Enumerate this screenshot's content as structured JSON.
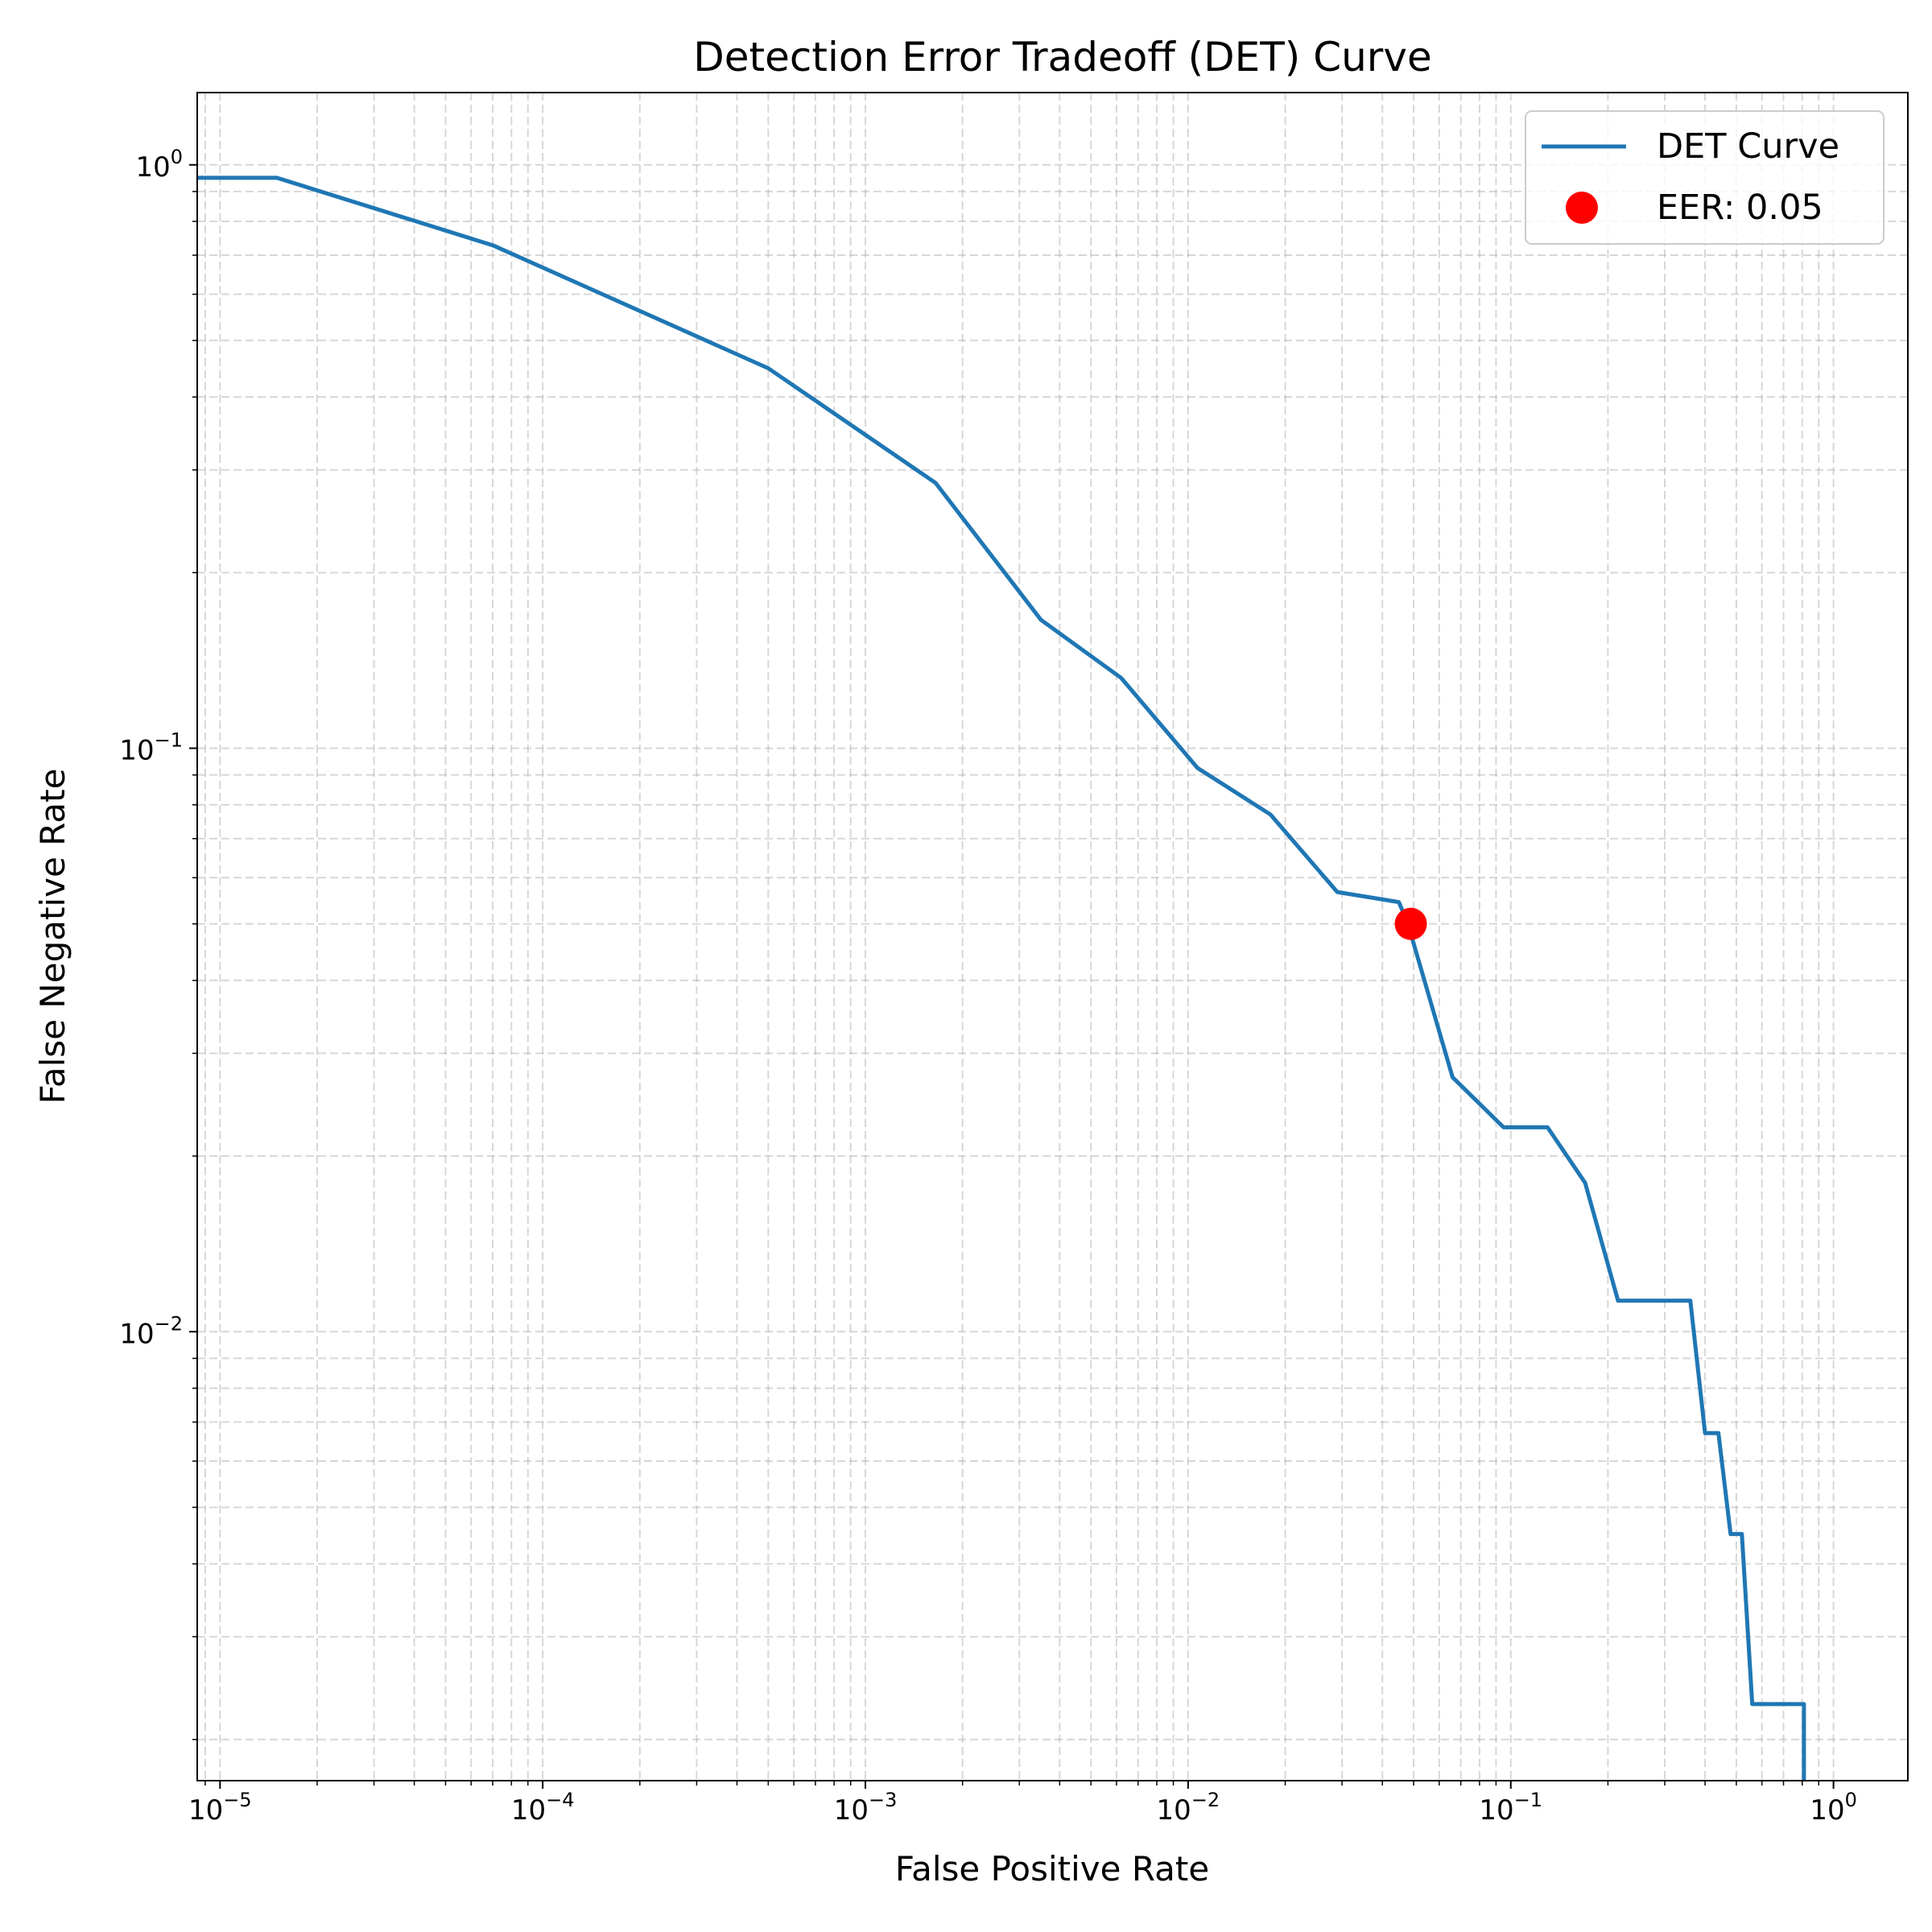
{
  "chart_data": {
    "type": "line",
    "title": "Detection Error Tradeoff (DET) Curve",
    "xlabel": "False Positive Rate",
    "ylabel": "False Negative Rate",
    "xscale": "log",
    "yscale": "log",
    "xlim": [
      8.5e-06,
      1.7
    ],
    "ylim": [
      0.0017,
      1.33
    ],
    "grid": true,
    "grid_which": "both",
    "legend_position": "top-right",
    "x_ticks": [
      {
        "value": 1e-05,
        "base": "10",
        "exp": "−5"
      },
      {
        "value": 0.0001,
        "base": "10",
        "exp": "−4"
      },
      {
        "value": 0.001,
        "base": "10",
        "exp": "−3"
      },
      {
        "value": 0.01,
        "base": "10",
        "exp": "−2"
      },
      {
        "value": 0.1,
        "base": "10",
        "exp": "−1"
      },
      {
        "value": 1,
        "base": "10",
        "exp": "0"
      }
    ],
    "y_ticks": [
      {
        "value": 0.01,
        "base": "10",
        "exp": "−2"
      },
      {
        "value": 0.1,
        "base": "10",
        "exp": "−1"
      },
      {
        "value": 1,
        "base": "10",
        "exp": "0"
      }
    ],
    "series": [
      {
        "name": "DET Curve",
        "color": "#1f77b4",
        "x": [
          8.5e-06,
          1.5e-05,
          7e-05,
          0.0005,
          0.00165,
          0.0035,
          0.0062,
          0.0107,
          0.018,
          0.029,
          0.045,
          0.048,
          0.066,
          0.095,
          0.13,
          0.17,
          0.215,
          0.36,
          0.4,
          0.44,
          0.48,
          0.52,
          0.56,
          0.81,
          0.81
        ],
        "y": [
          0.95,
          0.95,
          0.728,
          0.448,
          0.285,
          0.166,
          0.132,
          0.0925,
          0.077,
          0.0567,
          0.0545,
          0.05,
          0.0273,
          0.0224,
          0.0224,
          0.018,
          0.0113,
          0.0113,
          0.0067,
          0.0067,
          0.0045,
          0.0045,
          0.0023,
          0.0023,
          0.0017
        ]
      }
    ],
    "points": [
      {
        "name": "EER: 0.05",
        "x": 0.049,
        "y": 0.05,
        "color": "#ff0000"
      }
    ]
  }
}
